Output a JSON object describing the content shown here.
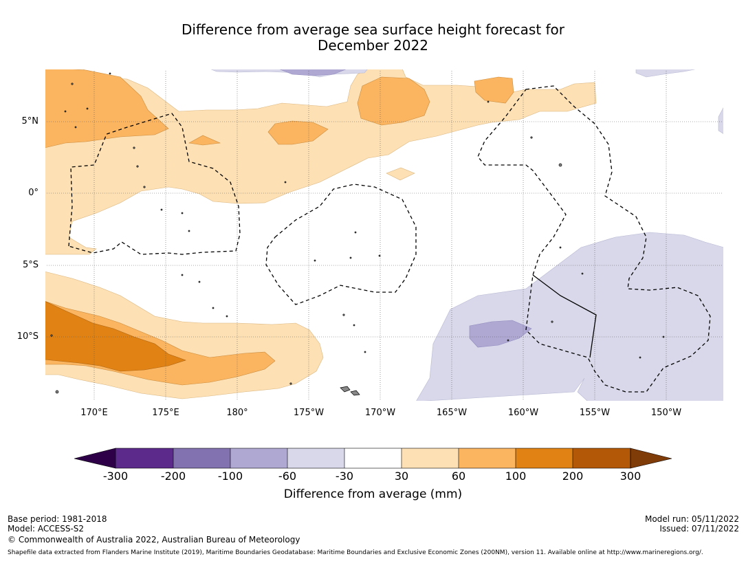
{
  "title_line1": "Difference from average sea surface height forecast for",
  "title_line2": "December 2022",
  "map": {
    "lon_labels": [
      "170°E",
      "175°E",
      "180°",
      "175°W",
      "170°W",
      "165°W",
      "160°W",
      "155°W",
      "150°W"
    ],
    "lat_labels": [
      "5°N",
      "0°",
      "5°S",
      "10°S"
    ]
  },
  "colorbar": {
    "label": "Difference from average (mm)",
    "ticks": [
      "-300",
      "-200",
      "-100",
      "-60",
      "-30",
      "30",
      "60",
      "100",
      "200",
      "300"
    ],
    "colors": [
      "#2d0047",
      "#5b2a8b",
      "#8273b0",
      "#aea8d2",
      "#d8d8ea",
      "#ffffff",
      "#fde0b4",
      "#fbb561",
      "#e08214",
      "#b35806",
      "#7f3b08"
    ]
  },
  "footer": {
    "base_period": "Base period: 1981-2018",
    "model": "Model: ACCESS-S2",
    "copyright": "© Commonwealth of Australia 2022, Australian Bureau of Meteorology",
    "model_run": "Model run: 05/11/2022",
    "issued": "Issued: 07/11/2022",
    "shapefile": "Shapefile data extracted from Flanders Marine Institute (2019), Maritime Boundaries Geodatabase: Maritime Boundaries and Exclusive Economic Zones (200NM), version 11. Available online at http://www.marineregions.org/."
  }
}
